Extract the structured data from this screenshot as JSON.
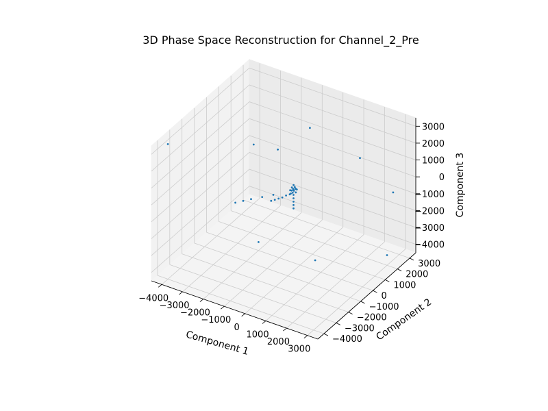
{
  "chart_data": {
    "type": "scatter",
    "projection": "3d",
    "title": "3D Phase Space Reconstruction for Channel_2_Pre",
    "xlabel": "Component 1",
    "ylabel": "Component 2",
    "zlabel": "Component 3",
    "xlim": [
      -4500,
      3500
    ],
    "ylim": [
      -4500,
      3500
    ],
    "zlim": [
      -4500,
      3500
    ],
    "xticks": [
      -4000,
      -3000,
      -2000,
      -1000,
      0,
      1000,
      2000,
      3000
    ],
    "yticks": [
      -4000,
      -3000,
      -2000,
      -1000,
      0,
      1000,
      2000,
      3000
    ],
    "zticks": [
      -4000,
      -3000,
      -2000,
      -1000,
      0,
      1000,
      2000,
      3000
    ],
    "grid": true,
    "marker_color": "#1f77b4",
    "points": [
      [
        -4000,
        -4000,
        3500
      ],
      [
        -4000,
        3000,
        -1000
      ],
      [
        3000,
        2000,
        -3900
      ],
      [
        3000,
        2500,
        -500
      ],
      [
        2900,
        -3700,
        -600
      ],
      [
        -2000,
        0,
        -4000
      ],
      [
        1700,
        2000,
        1300
      ],
      [
        -1000,
        2500,
        1600
      ],
      [
        -600,
        -800,
        2600
      ],
      [
        -300,
        -300,
        0
      ],
      [
        -200,
        -200,
        0
      ],
      [
        -250,
        -150,
        0
      ],
      [
        -150,
        -250,
        0
      ],
      [
        -100,
        -100,
        0
      ],
      [
        -200,
        -100,
        100
      ],
      [
        -100,
        -200,
        100
      ],
      [
        -180,
        -300,
        -100
      ],
      [
        -300,
        -180,
        -100
      ],
      [
        -250,
        -250,
        150
      ],
      [
        -120,
        -150,
        -150
      ],
      [
        -150,
        -120,
        50
      ],
      [
        -280,
        -280,
        -200
      ],
      [
        -220,
        -160,
        250
      ],
      [
        -200,
        -200,
        -300
      ],
      [
        -200,
        -200,
        -500
      ],
      [
        -200,
        -200,
        -700
      ],
      [
        -200,
        -200,
        -900
      ],
      [
        -200,
        -200,
        -1100
      ],
      [
        -350,
        -250,
        -300
      ],
      [
        -500,
        -300,
        -400
      ],
      [
        -650,
        -350,
        -550
      ],
      [
        -800,
        -400,
        -650
      ],
      [
        -950,
        -450,
        -750
      ],
      [
        -1100,
        -500,
        -850
      ],
      [
        -700,
        -1000,
        0
      ],
      [
        -1000,
        -1400,
        0
      ],
      [
        -1300,
        -1800,
        0
      ],
      [
        -1500,
        -2100,
        0
      ],
      [
        -1700,
        -2400,
        0
      ]
    ]
  }
}
